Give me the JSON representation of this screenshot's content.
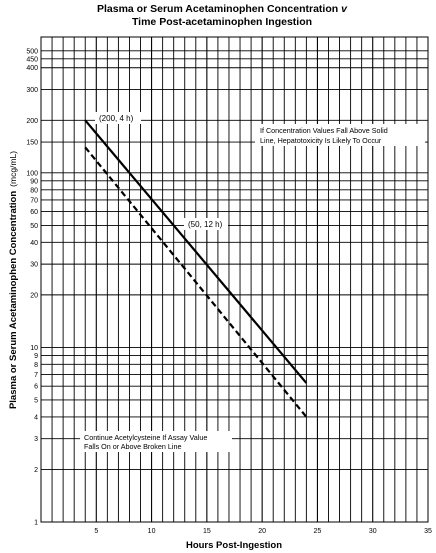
{
  "chart_data": {
    "type": "line",
    "title_line1": "Plasma or Serum Acetaminophen Concentration",
    "title_italic": "v",
    "title_line2": "Time Post-acetaminophen Ingestion",
    "xlabel": "Hours Post-Ingestion",
    "ylabel_main": "Plasma or Serum Acetaminophen Concentration",
    "ylabel_unit": "(mcg/mL)",
    "x_scale": "linear",
    "y_scale": "log",
    "xlim": [
      0,
      35
    ],
    "ylim": [
      1,
      600
    ],
    "grid": true,
    "x_tick_labels": [
      "5",
      "10",
      "15",
      "20",
      "25",
      "30",
      "35"
    ],
    "y_tick_labels": [
      "500",
      "450",
      "400",
      "300",
      "200",
      "150",
      "100",
      "90",
      "80",
      "70",
      "60",
      "50",
      "40",
      "30",
      "20",
      "10",
      "9",
      "8",
      "7",
      "6",
      "5",
      "4",
      "3",
      "2",
      "1"
    ],
    "series": [
      {
        "style": "solid",
        "x": [
          4,
          24
        ],
        "y": [
          200,
          6.25
        ]
      },
      {
        "style": "dashed",
        "x": [
          4,
          24
        ],
        "y": [
          140,
          4.0
        ]
      }
    ],
    "point_labels": [
      "(200, 4 h)",
      "(50, 12 h)"
    ],
    "annotations": {
      "upper_line1": "If Concentration Values Fall Above Solid",
      "upper_line2": "Line, Hepatotoxicity Is Likely To Occur",
      "lower_line1": "Continue Acetylcysteine If Assay Value",
      "lower_line2": "Falls On or Above Broken Line"
    }
  }
}
